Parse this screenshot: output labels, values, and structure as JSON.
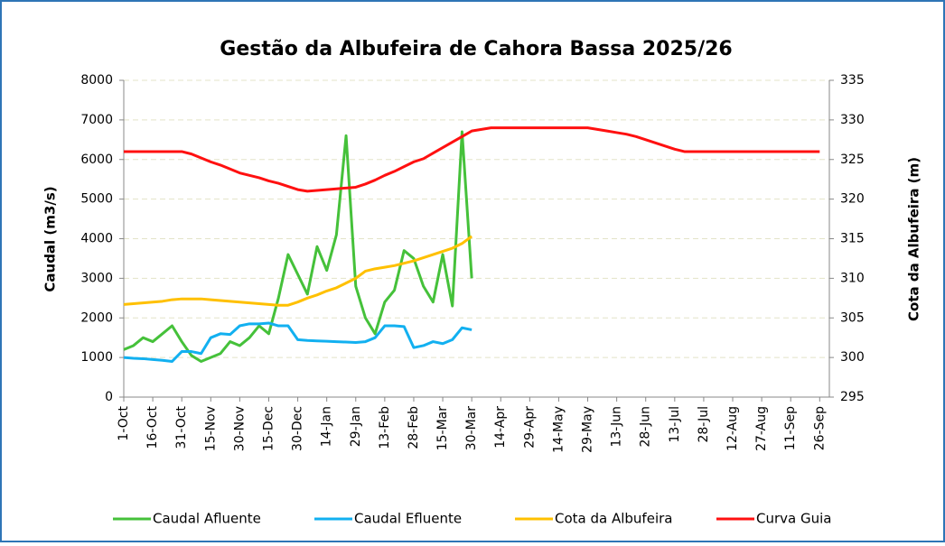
{
  "chart_data": {
    "type": "line",
    "title": "Gestão da Albufeira de Cahora Bassa 2025/26",
    "y_label": "Caudal (m3/s)",
    "y2_label": "Cota da Albufeira (m)",
    "categories": [
      "1-Oct",
      null,
      null,
      "16-Oct",
      null,
      null,
      "31-Oct",
      null,
      null,
      "15-Nov",
      null,
      null,
      "30-Nov",
      null,
      null,
      "15-Dec",
      null,
      null,
      "30-Dec",
      null,
      null,
      "14-Jan",
      null,
      null,
      "29-Jan",
      null,
      null,
      "13-Feb",
      null,
      null,
      "28-Feb",
      null,
      null,
      "15-Mar",
      null,
      null,
      "30-Mar",
      null,
      null,
      "14-Apr",
      null,
      null,
      "29-Apr",
      null,
      null,
      "14-May",
      null,
      null,
      "29-May",
      null,
      null,
      "13-Jun",
      null,
      null,
      "28-Jun",
      null,
      null,
      "13-Jul",
      null,
      null,
      "28-Jul",
      null,
      null,
      "12-Aug",
      null,
      null,
      "27-Aug",
      null,
      null,
      "11-Sep",
      null,
      null,
      "26-Sep",
      null
    ],
    "ylim": [
      0,
      8000
    ],
    "yticks": [
      0,
      1000,
      2000,
      3000,
      4000,
      5000,
      6000,
      7000,
      8000
    ],
    "y2lim": [
      295,
      335
    ],
    "y2ticks": [
      295,
      300,
      305,
      310,
      315,
      320,
      325,
      330,
      335
    ],
    "grid": true,
    "series": [
      {
        "name": "Caudal Afluente",
        "color": "#45c13a",
        "values": [
          1200,
          1300,
          1500,
          1400,
          1600,
          1800,
          1400,
          1050,
          900,
          1000,
          1100,
          1400,
          1300,
          1500,
          1800,
          1600,
          2500,
          3600,
          3100,
          2600,
          3800,
          3200,
          4100,
          6600,
          2800,
          2000,
          1600,
          2400,
          2700,
          3700,
          3500,
          2800,
          2400,
          3600,
          2300,
          6700,
          3000,
          null,
          null,
          null,
          null,
          null,
          null,
          null,
          null,
          null,
          null,
          null,
          null,
          null,
          null,
          null,
          null,
          null,
          null,
          null,
          null,
          null,
          null,
          null,
          null,
          null,
          null,
          null,
          null,
          null,
          null,
          null,
          null,
          null,
          null,
          null,
          null,
          null
        ]
      },
      {
        "name": "Caudal Efluente",
        "color": "#12b0f0",
        "values": [
          1000,
          980,
          970,
          950,
          930,
          900,
          1150,
          1150,
          1100,
          1500,
          1600,
          1580,
          1800,
          1850,
          1850,
          1870,
          1800,
          1800,
          1450,
          1430,
          1420,
          1410,
          1400,
          1390,
          1380,
          1400,
          1500,
          1800,
          1800,
          1780,
          1250,
          1300,
          1400,
          1350,
          1450,
          1750,
          1700,
          null,
          null,
          null,
          null,
          null,
          null,
          null,
          null,
          null,
          null,
          null,
          null,
          null,
          null,
          null,
          null,
          null,
          null,
          null,
          null,
          null,
          null,
          null,
          null,
          null,
          null,
          null,
          null,
          null,
          null,
          null,
          null,
          null,
          null,
          null,
          null,
          null
        ]
      },
      {
        "name": "Cota da Albufeira",
        "color": "#ffc000",
        "axis": "y2",
        "values": [
          306.7,
          306.8,
          306.9,
          307.0,
          307.1,
          307.3,
          307.4,
          307.4,
          307.4,
          307.3,
          307.2,
          307.1,
          307.0,
          306.9,
          306.8,
          306.7,
          306.6,
          306.6,
          307.0,
          307.5,
          307.9,
          308.4,
          308.8,
          309.4,
          310.0,
          310.9,
          311.2,
          311.4,
          311.6,
          311.9,
          312.2,
          312.6,
          313.0,
          313.4,
          313.8,
          314.4,
          315.3,
          null,
          null,
          null,
          null,
          null,
          null,
          null,
          null,
          null,
          null,
          null,
          null,
          null,
          null,
          null,
          null,
          null,
          null,
          null,
          null,
          null,
          null,
          null,
          null,
          null,
          null,
          null,
          null,
          null,
          null,
          null,
          null,
          null,
          null,
          null,
          null,
          null
        ]
      },
      {
        "name": "Curva Guia",
        "color": "#ff1010",
        "axis": "y2",
        "values": [
          326,
          326,
          326,
          326,
          326,
          326,
          326,
          325.7,
          325.2,
          324.7,
          324.3,
          323.8,
          323.3,
          323.0,
          322.7,
          322.3,
          322.0,
          321.6,
          321.2,
          321.0,
          321.1,
          321.2,
          321.3,
          321.4,
          321.5,
          321.9,
          322.4,
          323.0,
          323.5,
          324.1,
          324.7,
          325.1,
          325.8,
          326.5,
          327.2,
          327.9,
          328.6,
          328.8,
          329,
          329,
          329,
          329,
          329,
          329,
          329,
          329,
          329,
          329,
          329,
          328.8,
          328.6,
          328.4,
          328.2,
          327.9,
          327.5,
          327.1,
          326.7,
          326.3,
          326.0,
          326,
          326,
          326,
          326,
          326,
          326,
          326,
          326,
          326,
          326,
          326,
          326,
          326,
          326,
          null
        ]
      }
    ]
  }
}
